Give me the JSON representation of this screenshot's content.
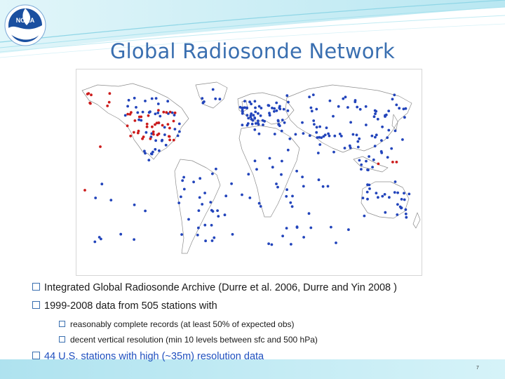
{
  "slide": {
    "title": "Global Radiosonde Network",
    "logo_text": "NOAA",
    "page_number": "7"
  },
  "bullets": [
    {
      "text": "Integrated Global Radiosonde Archive (Durre et al. 2006, Durre and Yin 2008 )"
    },
    {
      "text": "1999-2008 data from 505 stations with"
    }
  ],
  "sub_bullets": [
    {
      "text": "reasonably complete records (at least 50% of expected obs)"
    },
    {
      "text": "decent vertical resolution (min 10 levels between sfc and 500 hPa)"
    }
  ],
  "highlight_bullet": {
    "text": "44 U.S. stations with high (~35m) resolution data"
  },
  "colors": {
    "title": "#3a6fb0",
    "station_global": "#2244bb",
    "station_us_high_res": "#cc1c1c",
    "highlight_text": "#1f4fbf"
  },
  "icons": {
    "logo": "noaa-logo",
    "bullet": "square-bullet-icon"
  }
}
